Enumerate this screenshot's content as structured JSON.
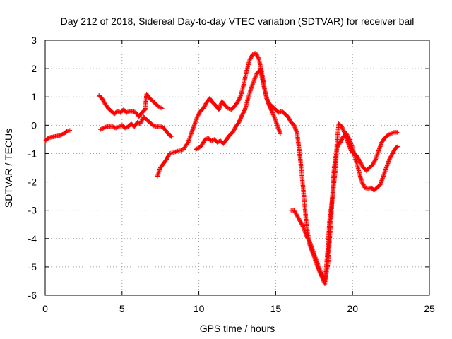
{
  "chart_data": {
    "type": "scatter",
    "title": "Day 212 of 2018, Sidereal Day-to-day VTEC variation (SDTVAR) for receiver bail",
    "xlabel": "GPS time / hours",
    "ylabel": "SDTVAR / TECUs",
    "xlim": [
      0,
      25
    ],
    "ylim": [
      -6,
      3
    ],
    "x_ticks": [
      0,
      5,
      10,
      15,
      20,
      25
    ],
    "y_ticks": [
      -6,
      -5,
      -4,
      -3,
      -2,
      -1,
      0,
      1,
      2,
      3
    ],
    "x_tick_labels": [
      "0",
      "5",
      "10",
      "15",
      "20",
      "25"
    ],
    "y_tick_labels": [
      "-6",
      "-5",
      "-4",
      "-3",
      "-2",
      "-1",
      "0",
      "1",
      "2",
      "3"
    ],
    "grid": true,
    "marker": "plus",
    "color": "#ff0000",
    "series": [
      {
        "points": [
          [
            0.0,
            -0.55
          ],
          [
            0.2,
            -0.45
          ],
          [
            0.4,
            -0.42
          ],
          [
            0.6,
            -0.4
          ],
          [
            0.8,
            -0.38
          ],
          [
            1.0,
            -0.35
          ],
          [
            1.2,
            -0.3
          ],
          [
            1.4,
            -0.22
          ],
          [
            1.6,
            -0.18
          ]
        ]
      },
      {
        "points": [
          [
            3.5,
            1.05
          ],
          [
            3.7,
            0.95
          ],
          [
            3.9,
            0.75
          ],
          [
            4.1,
            0.6
          ],
          [
            4.3,
            0.5
          ],
          [
            4.5,
            0.4
          ],
          [
            4.7,
            0.5
          ],
          [
            4.9,
            0.45
          ],
          [
            5.1,
            0.55
          ],
          [
            5.3,
            0.45
          ],
          [
            5.5,
            0.5
          ],
          [
            5.7,
            0.5
          ],
          [
            5.9,
            0.45
          ],
          [
            6.1,
            0.3
          ],
          [
            6.3,
            0.45
          ],
          [
            6.5,
            0.55
          ],
          [
            6.6,
            1.1
          ],
          [
            6.8,
            0.95
          ],
          [
            7.0,
            0.85
          ],
          [
            7.2,
            0.75
          ],
          [
            7.4,
            0.65
          ],
          [
            7.6,
            0.6
          ]
        ]
      },
      {
        "points": [
          [
            3.6,
            -0.15
          ],
          [
            3.8,
            -0.1
          ],
          [
            4.0,
            -0.05
          ],
          [
            4.2,
            -0.05
          ],
          [
            4.4,
            -0.05
          ],
          [
            4.6,
            -0.1
          ],
          [
            4.8,
            -0.05
          ],
          [
            5.0,
            0.0
          ],
          [
            5.2,
            -0.1
          ],
          [
            5.4,
            -0.05
          ],
          [
            5.6,
            0.05
          ],
          [
            5.8,
            -0.05
          ],
          [
            6.0,
            0.1
          ],
          [
            6.2,
            0.05
          ],
          [
            6.4,
            0.3
          ],
          [
            6.6,
            0.2
          ],
          [
            6.8,
            0.1
          ],
          [
            7.0,
            0.0
          ],
          [
            7.2,
            -0.05
          ],
          [
            7.4,
            -0.05
          ],
          [
            7.6,
            -0.05
          ],
          [
            7.8,
            -0.15
          ],
          [
            8.0,
            -0.3
          ],
          [
            8.2,
            -0.4
          ]
        ]
      },
      {
        "points": [
          [
            7.3,
            -1.8
          ],
          [
            7.5,
            -1.5
          ],
          [
            7.7,
            -1.35
          ],
          [
            7.9,
            -1.2
          ],
          [
            8.1,
            -1.0
          ],
          [
            8.4,
            -0.95
          ],
          [
            8.7,
            -0.9
          ],
          [
            9.0,
            -0.85
          ],
          [
            9.3,
            -0.6
          ],
          [
            9.5,
            -0.3
          ],
          [
            9.7,
            0.0
          ],
          [
            9.9,
            0.3
          ],
          [
            10.1,
            0.5
          ],
          [
            10.3,
            0.6
          ],
          [
            10.5,
            0.8
          ],
          [
            10.7,
            0.95
          ],
          [
            10.9,
            0.8
          ],
          [
            11.1,
            0.7
          ],
          [
            11.3,
            0.55
          ],
          [
            11.5,
            0.85
          ],
          [
            11.7,
            0.7
          ],
          [
            11.9,
            0.6
          ],
          [
            12.1,
            0.55
          ],
          [
            12.3,
            0.65
          ],
          [
            12.5,
            0.8
          ],
          [
            12.7,
            1.0
          ],
          [
            12.9,
            1.4
          ],
          [
            13.1,
            1.9
          ],
          [
            13.3,
            2.3
          ],
          [
            13.5,
            2.5
          ],
          [
            13.7,
            2.55
          ],
          [
            13.9,
            2.35
          ],
          [
            14.1,
            1.85
          ],
          [
            14.3,
            1.2
          ],
          [
            14.5,
            0.8
          ],
          [
            14.7,
            0.55
          ],
          [
            14.9,
            0.3
          ],
          [
            15.1,
            0.0
          ],
          [
            15.3,
            -0.3
          ]
        ]
      },
      {
        "points": [
          [
            9.8,
            -0.85
          ],
          [
            10.0,
            -0.8
          ],
          [
            10.2,
            -0.7
          ],
          [
            10.4,
            -0.5
          ],
          [
            10.6,
            -0.45
          ],
          [
            10.8,
            -0.55
          ],
          [
            11.0,
            -0.5
          ],
          [
            11.2,
            -0.6
          ],
          [
            11.4,
            -0.55
          ],
          [
            11.6,
            -0.65
          ],
          [
            11.8,
            -0.5
          ],
          [
            12.0,
            -0.35
          ],
          [
            12.2,
            -0.25
          ],
          [
            12.4,
            -0.05
          ],
          [
            12.6,
            0.1
          ],
          [
            12.8,
            0.35
          ],
          [
            13.0,
            0.55
          ],
          [
            13.2,
            0.95
          ],
          [
            13.4,
            1.3
          ],
          [
            13.6,
            1.6
          ],
          [
            13.8,
            1.85
          ],
          [
            14.0,
            1.95
          ],
          [
            14.2,
            1.45
          ],
          [
            14.4,
            0.95
          ],
          [
            14.6,
            0.75
          ],
          [
            14.8,
            0.65
          ],
          [
            15.0,
            0.55
          ],
          [
            15.2,
            0.45
          ],
          [
            15.4,
            0.5
          ],
          [
            15.6,
            0.4
          ],
          [
            15.8,
            0.3
          ],
          [
            16.0,
            0.1
          ],
          [
            16.2,
            0.0
          ],
          [
            16.4,
            -0.3
          ],
          [
            16.6,
            -1.2
          ],
          [
            16.8,
            -2.3
          ],
          [
            17.0,
            -3.5
          ],
          [
            17.2,
            -4.2
          ],
          [
            17.4,
            -4.5
          ],
          [
            17.6,
            -4.8
          ],
          [
            17.8,
            -5.1
          ],
          [
            18.0,
            -5.35
          ],
          [
            18.2,
            -5.6
          ],
          [
            18.4,
            -4.3
          ],
          [
            18.5,
            -3.4
          ],
          [
            18.7,
            -2.5
          ],
          [
            18.9,
            -1.5
          ],
          [
            19.0,
            -0.5
          ],
          [
            19.1,
            0.05
          ],
          [
            19.3,
            -0.05
          ],
          [
            19.5,
            -0.3
          ],
          [
            19.7,
            -0.6
          ],
          [
            19.9,
            -0.9
          ],
          [
            20.1,
            -1.0
          ],
          [
            20.3,
            -1.1
          ],
          [
            20.5,
            -1.3
          ],
          [
            20.7,
            -1.5
          ],
          [
            20.9,
            -1.6
          ],
          [
            21.1,
            -1.5
          ],
          [
            21.3,
            -1.4
          ],
          [
            21.5,
            -1.2
          ],
          [
            21.7,
            -0.9
          ],
          [
            21.9,
            -0.6
          ],
          [
            22.1,
            -0.45
          ],
          [
            22.3,
            -0.35
          ],
          [
            22.5,
            -0.3
          ],
          [
            22.7,
            -0.25
          ],
          [
            22.9,
            -0.25
          ]
        ]
      },
      {
        "points": [
          [
            16.0,
            -3.0
          ],
          [
            16.2,
            -3.0
          ],
          [
            16.4,
            -3.2
          ],
          [
            16.6,
            -3.4
          ],
          [
            16.8,
            -3.6
          ],
          [
            17.0,
            -3.9
          ],
          [
            17.2,
            -4.1
          ],
          [
            17.4,
            -4.4
          ],
          [
            17.6,
            -4.7
          ],
          [
            17.8,
            -5.0
          ],
          [
            18.0,
            -5.3
          ],
          [
            18.2,
            -5.5
          ],
          [
            18.4,
            -4.9
          ],
          [
            18.6,
            -3.3
          ],
          [
            18.8,
            -1.5
          ],
          [
            19.0,
            -0.8
          ],
          [
            19.2,
            -0.6
          ],
          [
            19.4,
            -0.4
          ],
          [
            19.6,
            -0.3
          ],
          [
            19.8,
            -0.5
          ],
          [
            20.0,
            -0.8
          ],
          [
            20.2,
            -1.2
          ],
          [
            20.4,
            -1.6
          ],
          [
            20.6,
            -2.0
          ],
          [
            20.8,
            -2.2
          ],
          [
            21.0,
            -2.25
          ],
          [
            21.2,
            -2.2
          ],
          [
            21.4,
            -2.3
          ],
          [
            21.6,
            -2.2
          ],
          [
            21.8,
            -2.1
          ],
          [
            22.0,
            -1.8
          ],
          [
            22.2,
            -1.5
          ],
          [
            22.4,
            -1.2
          ],
          [
            22.6,
            -1.0
          ],
          [
            22.8,
            -0.8
          ],
          [
            22.95,
            -0.75
          ]
        ]
      }
    ]
  }
}
